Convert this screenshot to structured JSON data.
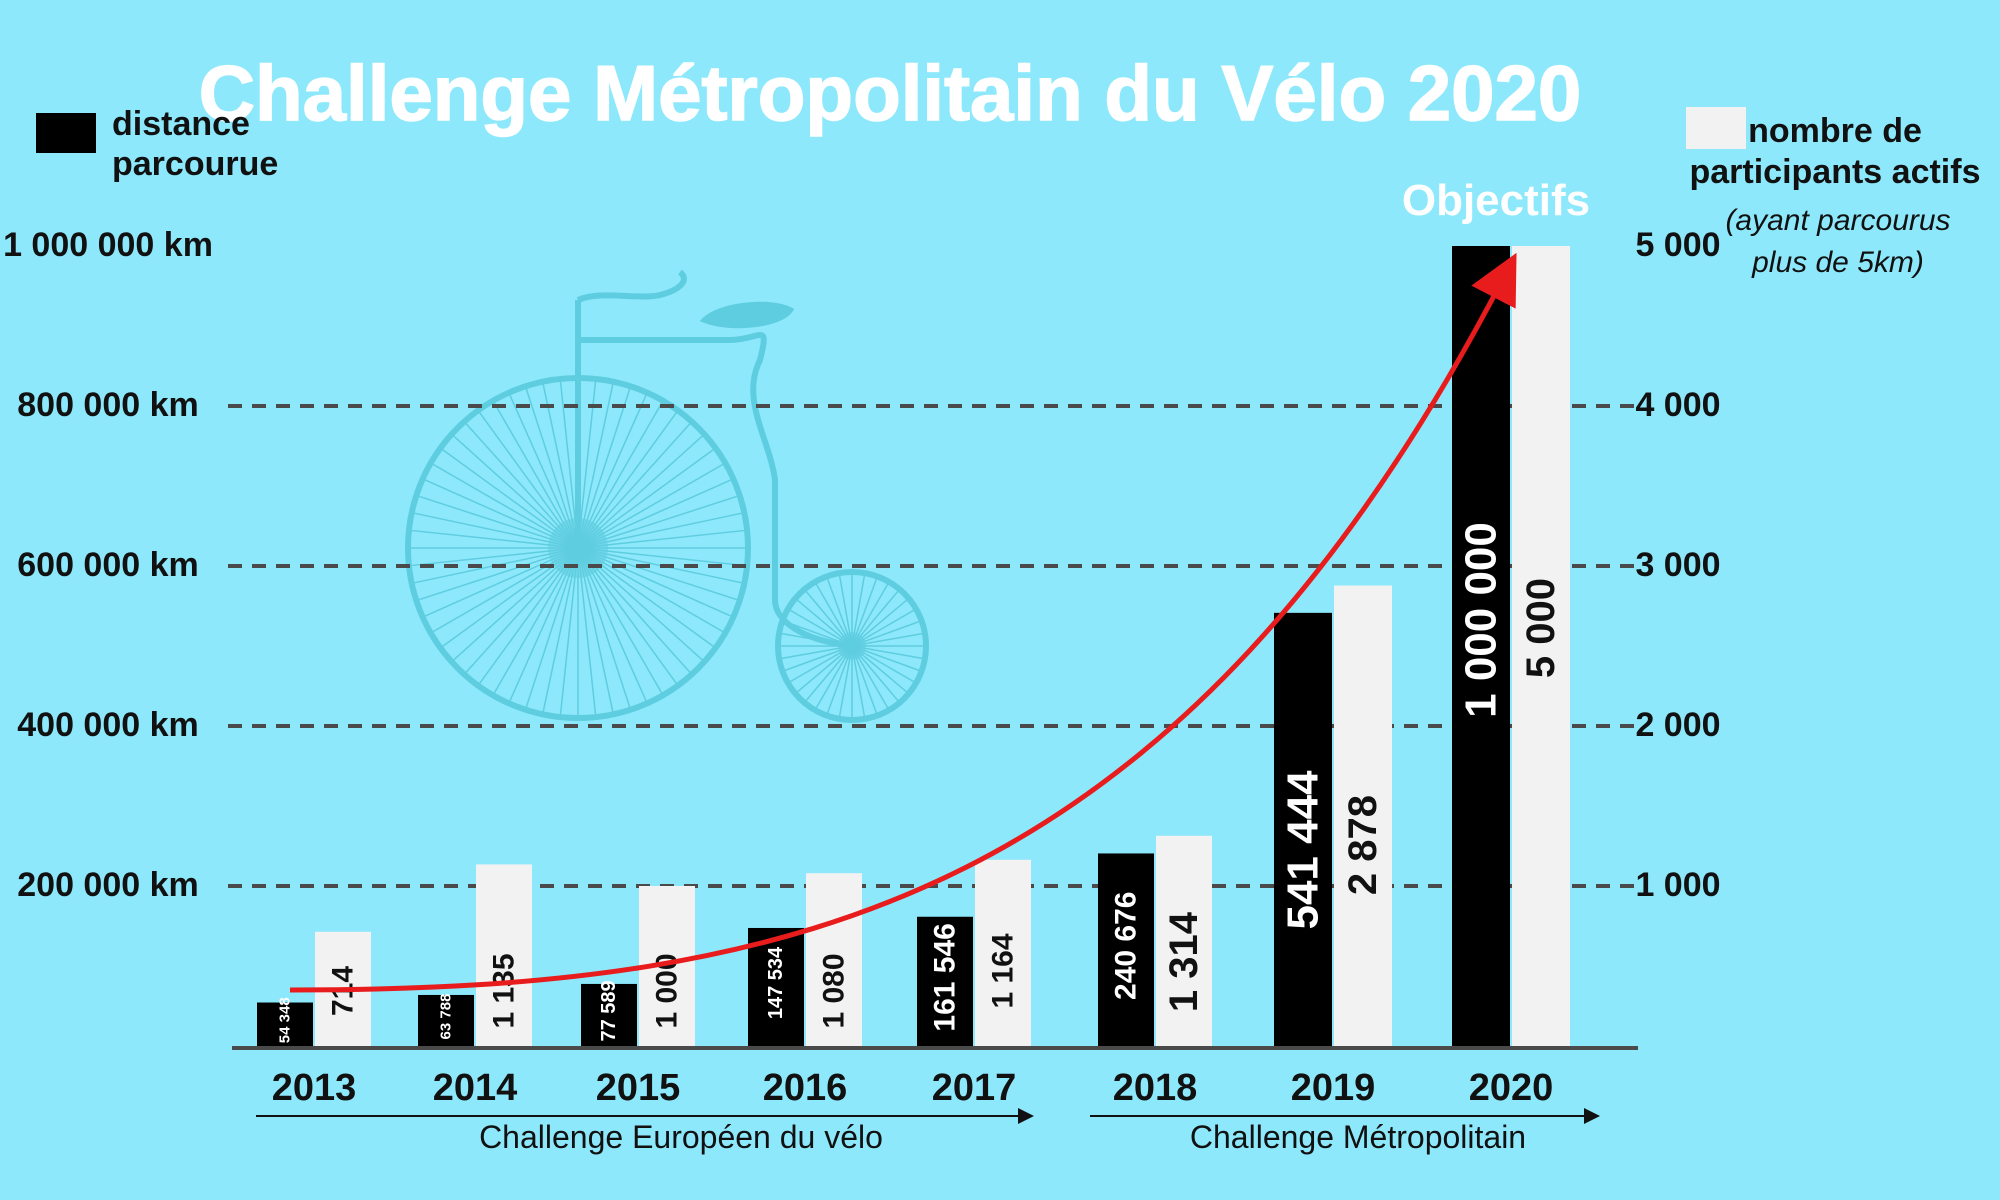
{
  "colors": {
    "background": "#8de8fb",
    "distance_bar": "#000000",
    "participants_bar": "#f2f2f2",
    "grid": "#4a4a4a",
    "trend_arrow": "#e81c1c",
    "title": "#ffffff",
    "bicycle": "#5fcde0"
  },
  "chart_data": {
    "type": "bar",
    "title": "Challenge Métropolitain du Vélo 2020",
    "categories": [
      "2013",
      "2014",
      "2015",
      "2016",
      "2017",
      "2018",
      "2019",
      "2020"
    ],
    "series": [
      {
        "name": "distance parcourue",
        "axis": "left",
        "values": [
          54348,
          63788,
          77589,
          147534,
          161546,
          240676,
          541444,
          1000000
        ],
        "labels": [
          "54 348",
          "63 788",
          "77 589",
          "147 534",
          "161 546",
          "240 676",
          "541 444",
          "1 000 000"
        ]
      },
      {
        "name": "nombre de participants actifs",
        "axis": "right",
        "values": [
          714,
          1135,
          1000,
          1080,
          1164,
          1314,
          2878,
          5000
        ],
        "labels": [
          "714",
          "1 135",
          "1 000",
          "1 080",
          "1 164",
          "1 314",
          "2 878",
          "5 000"
        ]
      }
    ],
    "left_axis": {
      "ylim": [
        0,
        1000000
      ],
      "ticks": [
        200000,
        400000,
        600000,
        800000,
        1000000
      ],
      "tick_labels": [
        "200 000 km",
        "400 000 km",
        "600 000 km",
        "800 000 km",
        "1 000 000 km"
      ]
    },
    "right_axis": {
      "ylim": [
        0,
        5000
      ],
      "ticks": [
        1000,
        2000,
        3000,
        4000,
        5000
      ],
      "tick_labels": [
        "1 000",
        "2 000",
        "3 000",
        "4 000",
        "5 000"
      ]
    },
    "grid": "dashed horizontal",
    "legend": {
      "distance_line1": "distance",
      "distance_line2": "parcourue",
      "participants_line1": "nombre de",
      "participants_line2": "participants actifs",
      "participants_note1": "(ayant parcourus",
      "participants_note2": "plus de 5km)"
    },
    "annotations": {
      "target_label": "Objectifs",
      "period_1": "Challenge Européen du vélo",
      "period_2": "Challenge Métropolitain"
    }
  }
}
